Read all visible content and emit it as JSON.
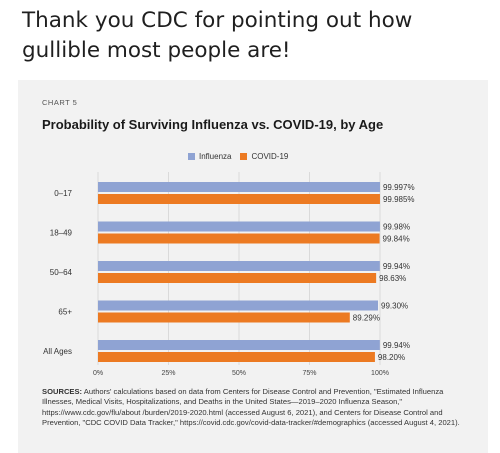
{
  "post": {
    "text": "Thank you CDC for pointing out how gullible most people are!"
  },
  "card": {
    "chart_label": "CHART 5",
    "sources_label": "SOURCES:",
    "sources_text": "Authors' calculations based on data from Centers for Disease Control and Prevention, \"Estimated Influenza Illnesses, Medical Visits, Hospitalizations, and Deaths in the United States—2019–2020 Influenza Season,\" https://www.cdc.gov/flu/about /burden/2019-2020.html (accessed August 6, 2021), and Centers for Disease Control and Prevention, \"CDC COVID Data Tracker,\" https://covid.cdc.gov/covid-data-tracker/#demographics (accessed August 4, 2021)."
  },
  "chart_data": {
    "type": "bar",
    "orientation": "horizontal",
    "title": "Probability of Surviving Influenza vs. COVID-19, by Age",
    "categories": [
      "0–17",
      "18–49",
      "50–64",
      "65+",
      "All Ages"
    ],
    "series": [
      {
        "name": "Influenza",
        "color": "#8fa3d3",
        "values": [
          99.997,
          99.98,
          99.94,
          99.3,
          99.94
        ],
        "labels": [
          "99.997%",
          "99.98%",
          "99.94%",
          "99.30%",
          "99.94%"
        ]
      },
      {
        "name": "COVID-19",
        "color": "#ec7a22",
        "values": [
          99.985,
          99.84,
          98.63,
          89.29,
          98.2
        ],
        "labels": [
          "99.985%",
          "99.84%",
          "98.63%",
          "89.29%",
          "98.20%"
        ]
      }
    ],
    "xlim": [
      0,
      100
    ],
    "xticks": [
      "0%",
      "25%",
      "50%",
      "75%",
      "100%"
    ],
    "grid": true,
    "legend_position": "top"
  }
}
